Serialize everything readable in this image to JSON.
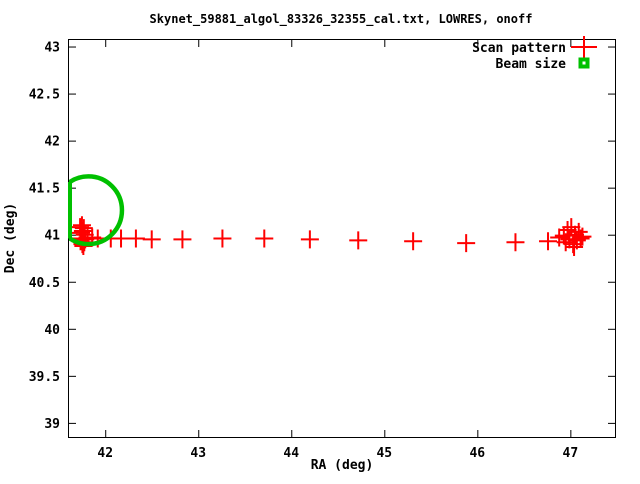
{
  "colors": {
    "background": "#ffffff",
    "axis": "#000000",
    "scan_pattern": "#ff0000",
    "beam": "#00c000"
  },
  "chart_data": {
    "type": "scatter",
    "title": "Skynet_59881_algol_83326_32355_cal.txt, LOWRES, onoff",
    "xlabel": "RA (deg)",
    "ylabel": "Dec (deg)",
    "xlim": [
      41.6,
      47.48
    ],
    "ylim": [
      38.85,
      43.08
    ],
    "xticks": [
      42,
      43,
      44,
      45,
      46,
      47
    ],
    "yticks": [
      39,
      39.5,
      40,
      40.5,
      41,
      41.5,
      42,
      42.5,
      43
    ],
    "grid": false,
    "legend_position": "top-right-inside",
    "legend": [
      {
        "label": "Scan pattern",
        "marker": "plus",
        "color": "#ff0000"
      },
      {
        "label": "Beam size",
        "marker": "filled-square-dot",
        "color": "#00c000"
      }
    ],
    "series": [
      {
        "name": "Scan pattern",
        "marker": "plus",
        "color": "#ff0000",
        "points": [
          [
            41.73,
            41.08
          ],
          [
            41.735,
            40.93
          ],
          [
            41.74,
            41.02
          ],
          [
            41.745,
            40.96
          ],
          [
            41.75,
            41.1
          ],
          [
            41.755,
            40.9
          ],
          [
            41.76,
            41.04
          ],
          [
            41.765,
            40.88
          ],
          [
            41.77,
            41.07
          ],
          [
            41.775,
            40.92
          ],
          [
            41.78,
            41.0
          ],
          [
            41.785,
            40.95
          ],
          [
            41.81,
            40.97
          ],
          [
            41.86,
            40.97
          ],
          [
            41.92,
            40.96
          ],
          [
            42.06,
            40.96
          ],
          [
            42.17,
            40.96
          ],
          [
            42.33,
            40.96
          ],
          [
            42.5,
            40.95
          ],
          [
            42.83,
            40.95
          ],
          [
            43.26,
            40.96
          ],
          [
            43.71,
            40.96
          ],
          [
            44.2,
            40.95
          ],
          [
            44.72,
            40.94
          ],
          [
            45.31,
            40.93
          ],
          [
            45.88,
            40.91
          ],
          [
            46.41,
            40.92
          ],
          [
            46.76,
            40.93
          ],
          [
            46.88,
            40.97
          ],
          [
            46.93,
            40.99
          ],
          [
            46.95,
            40.92
          ],
          [
            46.97,
            41.05
          ],
          [
            46.99,
            40.95
          ],
          [
            47.01,
            41.08
          ],
          [
            47.03,
            40.9
          ],
          [
            47.04,
            40.87
          ],
          [
            47.05,
            41.0
          ],
          [
            47.07,
            40.94
          ],
          [
            47.09,
            41.03
          ],
          [
            47.11,
            40.96
          ],
          [
            47.13,
            40.98
          ]
        ]
      },
      {
        "name": "Beam size",
        "marker": "circle-outline",
        "color": "#00c000",
        "center": [
          41.82,
          41.26
        ],
        "radius_deg": 0.36
      }
    ]
  }
}
